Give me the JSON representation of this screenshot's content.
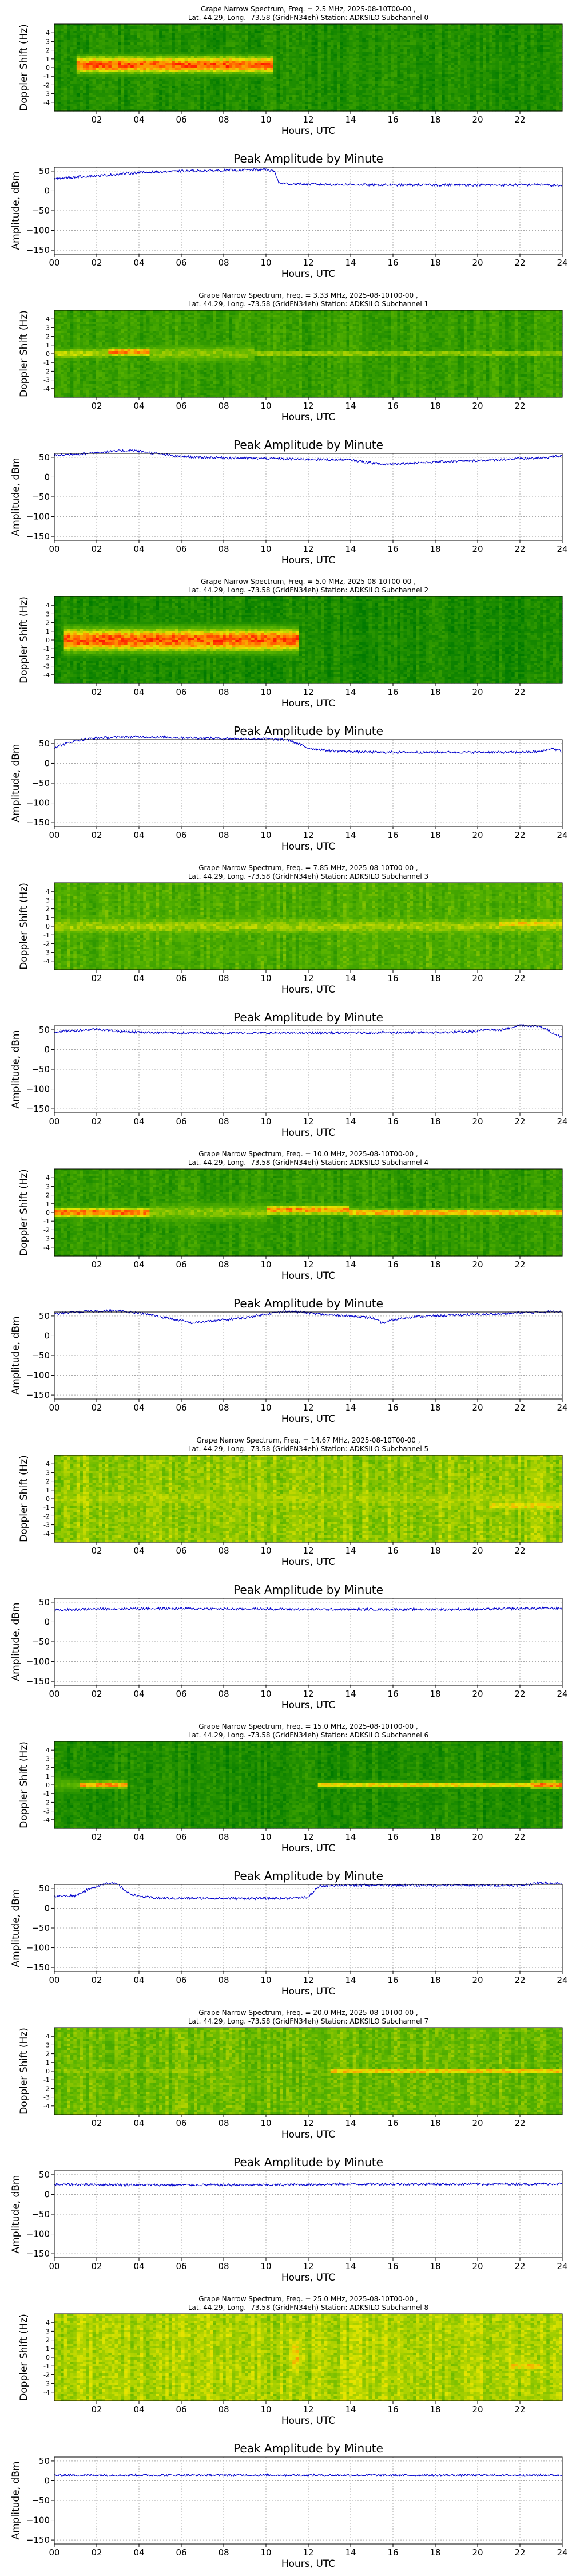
{
  "figure": {
    "spectrogram_xlabel": "Hours, UTC",
    "spectrogram_ylabel": "Doppler Shift (Hz)",
    "amplitude_title": "Peak Amplitude by Minute",
    "amplitude_xlabel": "Hours, UTC",
    "amplitude_ylabel": "Amplitude, dBm",
    "spectrogram_xticks": [
      "02",
      "04",
      "06",
      "08",
      "10",
      "12",
      "14",
      "16",
      "18",
      "20",
      "22"
    ],
    "spectrogram_yticks": [
      "4",
      "3",
      "2",
      "1",
      "0",
      "-1",
      "-2",
      "-3",
      "-4"
    ],
    "amplitude_xticks": [
      "00",
      "02",
      "04",
      "06",
      "08",
      "10",
      "12",
      "14",
      "16",
      "18",
      "20",
      "22",
      "24"
    ],
    "amplitude_yticks": [
      "50",
      "0",
      "−50",
      "−100",
      "−150"
    ],
    "line_color": "#0000cc",
    "colormap": [
      "#007a00",
      "#5ab400",
      "#e6e600",
      "#ff8c00",
      "#ff1a00"
    ]
  },
  "chart_data": [
    {
      "type": "heatmap",
      "title_line1": "Grape Narrow Spectrum, Freq. = 2.5 MHz, 2025-08-10T00-00 ,",
      "title_line2": "Lat.  44.29, Long. -73.58 (GridFN34eh) Station: ADKSILO Subchannel 0",
      "xlabel": "Hours, UTC",
      "ylabel": "Doppler Shift (Hz)",
      "xlim": [
        0,
        24
      ],
      "ylim": [
        -5,
        5
      ],
      "background_level": 0.12,
      "bands": [
        {
          "start": 1.0,
          "end": 10.4,
          "shift": 0.3,
          "width": 2.0,
          "intensity": 0.95
        },
        {
          "start": 10.4,
          "end": 24,
          "shift": 0.0,
          "width": 1.0,
          "intensity": 0.1
        }
      ]
    },
    {
      "type": "line",
      "title": "Peak Amplitude by Minute",
      "xlabel": "Hours, UTC",
      "ylabel": "Amplitude, dBm",
      "xlim": [
        0,
        24
      ],
      "ylim": [
        -160,
        60
      ],
      "grid": true,
      "x": [
        0,
        1,
        2,
        3,
        4,
        5,
        6,
        7,
        8,
        9,
        10,
        10.4,
        10.6,
        11,
        12,
        13,
        14,
        15,
        16,
        17,
        18,
        19,
        20,
        21,
        22,
        23,
        24
      ],
      "y": [
        30,
        35,
        38,
        42,
        46,
        48,
        50,
        51,
        52,
        53,
        54,
        50,
        20,
        18,
        17,
        16,
        16,
        15,
        15,
        15,
        15,
        15,
        15,
        15,
        15,
        16,
        12
      ]
    },
    {
      "type": "heatmap",
      "title_line1": "Grape Narrow Spectrum, Freq. = 3.33 MHz, 2025-08-10T00-00 ,",
      "title_line2": "Lat.  44.29, Long. -73.58 (GridFN34eh) Station: ADKSILO Subchannel 1",
      "xlabel": "Hours, UTC",
      "ylabel": "Doppler Shift (Hz)",
      "xlim": [
        0,
        24
      ],
      "ylim": [
        -5,
        5
      ],
      "background_level": 0.22,
      "bands": [
        {
          "start": 0,
          "end": 2.5,
          "shift": 0.0,
          "width": 1.4,
          "intensity": 0.55
        },
        {
          "start": 2.5,
          "end": 4.5,
          "shift": 0.2,
          "width": 1.0,
          "intensity": 0.85
        },
        {
          "start": 4.5,
          "end": 9.5,
          "shift": 0.0,
          "width": 2.5,
          "intensity": 0.45
        },
        {
          "start": 9.5,
          "end": 24,
          "shift": 0.0,
          "width": 0.5,
          "intensity": 0.6
        }
      ]
    },
    {
      "type": "line",
      "title": "Peak Amplitude by Minute",
      "xlabel": "Hours, UTC",
      "ylabel": "Amplitude, dBm",
      "xlim": [
        0,
        24
      ],
      "ylim": [
        -160,
        60
      ],
      "grid": true,
      "x": [
        0,
        1,
        2,
        3,
        3.7,
        4.5,
        5,
        6,
        7,
        8,
        9,
        10,
        11,
        12,
        13,
        14,
        15,
        15.5,
        16,
        17,
        18,
        19,
        20,
        21,
        22,
        23,
        24
      ],
      "y": [
        55,
        58,
        62,
        66,
        68,
        62,
        58,
        52,
        50,
        49,
        48,
        47,
        46,
        45,
        44,
        43,
        36,
        32,
        34,
        36,
        38,
        40,
        42,
        44,
        47,
        48,
        55
      ]
    },
    {
      "type": "heatmap",
      "title_line1": "Grape Narrow Spectrum, Freq. = 5.0 MHz, 2025-08-10T00-00 ,",
      "title_line2": "Lat.  44.29, Long. -73.58 (GridFN34eh) Station: ADKSILO Subchannel 2",
      "xlabel": "Hours, UTC",
      "ylabel": "Doppler Shift (Hz)",
      "xlim": [
        0,
        24
      ],
      "ylim": [
        -5,
        5
      ],
      "background_level": 0.1,
      "bands": [
        {
          "start": 0.5,
          "end": 11.5,
          "shift": 0.0,
          "width": 2.8,
          "intensity": 0.95
        },
        {
          "start": 11.5,
          "end": 24,
          "shift": 0.0,
          "width": 0.5,
          "intensity": 0.12
        }
      ]
    },
    {
      "type": "line",
      "title": "Peak Amplitude by Minute",
      "xlabel": "Hours, UTC",
      "ylabel": "Amplitude, dBm",
      "xlim": [
        0,
        24
      ],
      "ylim": [
        -160,
        60
      ],
      "grid": true,
      "x": [
        0,
        1,
        2,
        3,
        4,
        5,
        6,
        7,
        8,
        9,
        10,
        11,
        11.5,
        12,
        13,
        14,
        15,
        16,
        17,
        18,
        19,
        20,
        21,
        22,
        23,
        23.5,
        24
      ],
      "y": [
        40,
        58,
        64,
        66,
        67,
        66,
        65,
        64,
        63,
        62,
        62,
        60,
        50,
        38,
        32,
        30,
        28,
        28,
        28,
        28,
        28,
        28,
        28,
        28,
        30,
        38,
        30
      ]
    },
    {
      "type": "heatmap",
      "title_line1": "Grape Narrow Spectrum, Freq. = 7.85 MHz, 2025-08-10T00-00 ,",
      "title_line2": "Lat.  44.29, Long. -73.58 (GridFN34eh) Station: ADKSILO Subchannel 3",
      "xlabel": "Hours, UTC",
      "ylabel": "Doppler Shift (Hz)",
      "xlim": [
        0,
        24
      ],
      "ylim": [
        -5,
        5
      ],
      "background_level": 0.3,
      "bands": [
        {
          "start": 0,
          "end": 24,
          "shift": 0.0,
          "width": 2.5,
          "intensity": 0.5
        },
        {
          "start": 21,
          "end": 24,
          "shift": 0.3,
          "width": 1.2,
          "intensity": 0.7
        }
      ]
    },
    {
      "type": "line",
      "title": "Peak Amplitude by Minute",
      "xlabel": "Hours, UTC",
      "ylabel": "Amplitude, dBm",
      "xlim": [
        0,
        24
      ],
      "ylim": [
        -160,
        60
      ],
      "grid": true,
      "x": [
        0,
        1,
        2,
        3,
        4,
        5,
        6,
        7,
        8,
        9,
        10,
        11,
        12,
        13,
        14,
        15,
        16,
        17,
        18,
        19,
        20,
        20.5,
        21,
        22,
        22.5,
        23,
        24
      ],
      "y": [
        45,
        48,
        52,
        46,
        44,
        43,
        42,
        42,
        42,
        42,
        42,
        42,
        42,
        42,
        42,
        43,
        43,
        43,
        43,
        44,
        46,
        52,
        48,
        62,
        60,
        58,
        30
      ]
    },
    {
      "type": "heatmap",
      "title_line1": "Grape Narrow Spectrum, Freq. = 10.0 MHz, 2025-08-10T00-00 ,",
      "title_line2": "Lat.  44.29, Long. -73.58 (GridFN34eh) Station: ADKSILO Subchannel 4",
      "xlabel": "Hours, UTC",
      "ylabel": "Doppler Shift (Hz)",
      "xlim": [
        0,
        24
      ],
      "ylim": [
        -5,
        5
      ],
      "background_level": 0.2,
      "bands": [
        {
          "start": 0,
          "end": 4.5,
          "shift": 0.0,
          "width": 1.2,
          "intensity": 0.9
        },
        {
          "start": 4.5,
          "end": 10,
          "shift": 0.0,
          "width": 2.5,
          "intensity": 0.45
        },
        {
          "start": 10,
          "end": 14,
          "shift": 0.3,
          "width": 1.2,
          "intensity": 0.85
        },
        {
          "start": 14,
          "end": 24,
          "shift": 0.0,
          "width": 0.9,
          "intensity": 0.8
        }
      ]
    },
    {
      "type": "line",
      "title": "Peak Amplitude by Minute",
      "xlabel": "Hours, UTC",
      "ylabel": "Amplitude, dBm",
      "xlim": [
        0,
        24
      ],
      "ylim": [
        -160,
        60
      ],
      "grid": true,
      "x": [
        0,
        1,
        2,
        3,
        4,
        5,
        6,
        6.5,
        7,
        8,
        9,
        10,
        11,
        12,
        13,
        14,
        15,
        15.5,
        16,
        17,
        18,
        19,
        20,
        21,
        22,
        23,
        24
      ],
      "y": [
        55,
        60,
        62,
        63,
        58,
        48,
        38,
        32,
        35,
        40,
        45,
        55,
        62,
        58,
        52,
        50,
        45,
        32,
        40,
        48,
        50,
        52,
        54,
        55,
        58,
        60,
        62
      ]
    },
    {
      "type": "heatmap",
      "title_line1": "Grape Narrow Spectrum, Freq. = 14.67 MHz, 2025-08-10T00-00 ,",
      "title_line2": "Lat.  44.29, Long. -73.58 (GridFN34eh) Station: ADKSILO Subchannel 5",
      "xlabel": "Hours, UTC",
      "ylabel": "Doppler Shift (Hz)",
      "xlim": [
        0,
        24
      ],
      "ylim": [
        -5,
        5
      ],
      "background_level": 0.45,
      "bands": [
        {
          "start": 0,
          "end": 24,
          "shift": 0.0,
          "width": 3.5,
          "intensity": 0.5
        },
        {
          "start": 20.5,
          "end": 24,
          "shift": -0.8,
          "width": 1.5,
          "intensity": 0.65
        }
      ]
    },
    {
      "type": "line",
      "title": "Peak Amplitude by Minute",
      "xlabel": "Hours, UTC",
      "ylabel": "Amplitude, dBm",
      "xlim": [
        0,
        24
      ],
      "ylim": [
        -160,
        60
      ],
      "grid": true,
      "x": [
        0,
        2,
        4,
        6,
        8,
        10,
        12,
        14,
        16,
        18,
        20,
        22,
        24
      ],
      "y": [
        30,
        33,
        34,
        34,
        33,
        33,
        32,
        32,
        32,
        32,
        32,
        34,
        35
      ]
    },
    {
      "type": "heatmap",
      "title_line1": "Grape Narrow Spectrum, Freq. = 15.0 MHz, 2025-08-10T00-00 ,",
      "title_line2": "Lat.  44.29, Long. -73.58 (GridFN34eh) Station: ADKSILO Subchannel 6",
      "xlabel": "Hours, UTC",
      "ylabel": "Doppler Shift (Hz)",
      "xlim": [
        0,
        24
      ],
      "ylim": [
        -5,
        5
      ],
      "background_level": 0.12,
      "bands": [
        {
          "start": 0,
          "end": 1.2,
          "shift": 0.0,
          "width": 2.0,
          "intensity": 0.35
        },
        {
          "start": 1.2,
          "end": 3.4,
          "shift": 0.0,
          "width": 0.9,
          "intensity": 0.85
        },
        {
          "start": 3.4,
          "end": 12.5,
          "shift": 0.0,
          "width": 0.5,
          "intensity": 0.12
        },
        {
          "start": 12.5,
          "end": 24,
          "shift": 0.0,
          "width": 0.7,
          "intensity": 0.75
        },
        {
          "start": 22.5,
          "end": 24,
          "shift": 0.0,
          "width": 1.0,
          "intensity": 0.9
        }
      ]
    },
    {
      "type": "line",
      "title": "Peak Amplitude by Minute",
      "xlabel": "Hours, UTC",
      "ylabel": "Amplitude, dBm",
      "xlim": [
        0,
        24
      ],
      "ylim": [
        -160,
        60
      ],
      "grid": true,
      "x": [
        0,
        1,
        1.5,
        2,
        2.5,
        3,
        3.5,
        4,
        5,
        6,
        7,
        8,
        9,
        10,
        11,
        12,
        12.5,
        13,
        14,
        15,
        16,
        17,
        18,
        19,
        20,
        21,
        22,
        23,
        24
      ],
      "y": [
        30,
        32,
        45,
        55,
        65,
        60,
        38,
        30,
        25,
        25,
        25,
        25,
        25,
        25,
        25,
        28,
        55,
        58,
        58,
        58,
        58,
        58,
        58,
        58,
        58,
        58,
        58,
        64,
        62
      ]
    },
    {
      "type": "heatmap",
      "title_line1": "Grape Narrow Spectrum, Freq. = 20.0 MHz, 2025-08-10T00-00 ,",
      "title_line2": "Lat.  44.29, Long. -73.58 (GridFN34eh) Station: ADKSILO Subchannel 7",
      "xlabel": "Hours, UTC",
      "ylabel": "Doppler Shift (Hz)",
      "xlim": [
        0,
        24
      ],
      "ylim": [
        -5,
        5
      ],
      "background_level": 0.38,
      "bands": [
        {
          "start": 0.5,
          "end": 7.5,
          "shift": 0.0,
          "width": 0.5,
          "intensity": 0.6
        },
        {
          "start": 13,
          "end": 24,
          "shift": 0.0,
          "width": 0.7,
          "intensity": 0.8
        }
      ]
    },
    {
      "type": "line",
      "title": "Peak Amplitude by Minute",
      "xlabel": "Hours, UTC",
      "ylabel": "Amplitude, dBm",
      "xlim": [
        0,
        24
      ],
      "ylim": [
        -160,
        60
      ],
      "grid": true,
      "x": [
        0,
        2,
        4,
        6,
        8,
        10,
        12,
        14,
        16,
        18,
        20,
        22,
        24
      ],
      "y": [
        25,
        25,
        24,
        24,
        24,
        24,
        25,
        26,
        26,
        26,
        26,
        26,
        27
      ]
    },
    {
      "type": "heatmap",
      "title_line1": "Grape Narrow Spectrum, Freq. = 25.0 MHz, 2025-08-10T00-00 ,",
      "title_line2": "Lat.  44.29, Long. -73.58 (GridFN34eh) Station: ADKSILO Subchannel 8",
      "xlabel": "Hours, UTC",
      "ylabel": "Doppler Shift (Hz)",
      "xlim": [
        0,
        24
      ],
      "ylim": [
        -5,
        5
      ],
      "background_level": 0.5,
      "bands": [
        {
          "start": 11.2,
          "end": 11.6,
          "shift": 0.0,
          "width": 8.0,
          "intensity": 0.7
        },
        {
          "start": 21.5,
          "end": 23,
          "shift": -1.0,
          "width": 1.2,
          "intensity": 0.7
        }
      ]
    },
    {
      "type": "line",
      "title": "Peak Amplitude by Minute",
      "xlabel": "Hours, UTC",
      "ylabel": "Amplitude, dBm",
      "xlim": [
        0,
        24
      ],
      "ylim": [
        -160,
        60
      ],
      "grid": true,
      "x": [
        0,
        2,
        4,
        6,
        8,
        10,
        12,
        14,
        16,
        18,
        20,
        22,
        24
      ],
      "y": [
        14,
        14,
        14,
        14,
        14,
        14,
        14,
        14,
        14,
        14,
        14,
        14,
        14
      ]
    }
  ]
}
